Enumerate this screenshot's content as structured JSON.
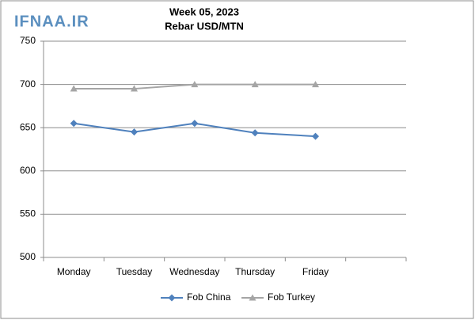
{
  "watermark": "IFNAA.IR",
  "chart_data": {
    "type": "line",
    "title": "Week 05, 2023",
    "subtitle": "Rebar USD/MTN",
    "categories": [
      "Monday",
      "Tuesday",
      "Wednesday",
      "Thursday",
      "Friday",
      null
    ],
    "series": [
      {
        "name": "Fob China",
        "color": "#4f81bd",
        "marker": "diamond",
        "values": [
          655,
          645,
          655,
          644,
          640,
          null
        ]
      },
      {
        "name": "Fob Turkey",
        "color": "#a5a5a5",
        "marker": "triangle",
        "values": [
          695,
          695,
          700,
          700,
          700,
          null
        ]
      }
    ],
    "ylim": [
      500,
      750
    ],
    "yticks": [
      500,
      550,
      600,
      650,
      700,
      750
    ],
    "grid": true,
    "legend": "bottom"
  }
}
